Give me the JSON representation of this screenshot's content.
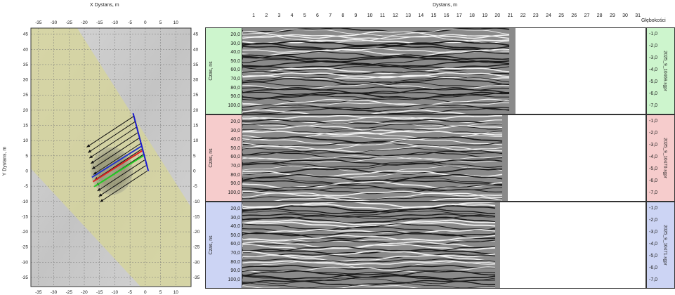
{
  "map": {
    "x_axis_title": "X Dystans, m",
    "y_axis_title": "Y Dystans, m",
    "x_ticks": [
      "-35",
      "-30",
      "-25",
      "-20",
      "-15",
      "-10",
      "-5",
      "0",
      "5",
      "10"
    ],
    "y_ticks": [
      "45",
      "40",
      "35",
      "30",
      "25",
      "20",
      "15",
      "10",
      "5",
      "0",
      "-5",
      "-10",
      "-15",
      "-20",
      "-25",
      "-30",
      "-35"
    ]
  },
  "radar": {
    "distance_title": "Dystans, m",
    "distance_ticks": [
      "1",
      "2",
      "3",
      "4",
      "5",
      "6",
      "7",
      "8",
      "9",
      "10",
      "11",
      "12",
      "13",
      "14",
      "15",
      "16",
      "17",
      "18",
      "19",
      "20",
      "21",
      "22",
      "23",
      "24",
      "25",
      "26",
      "27",
      "28",
      "29",
      "30",
      "31"
    ],
    "depth_title": "Głębokości",
    "time_axis_label": "Czas, ns",
    "time_ticks": [
      "20,0",
      "30,0",
      "40,0",
      "50,0",
      "60,0",
      "70,0",
      "80,0",
      "90,0",
      "100,0"
    ],
    "depth_ticks": [
      "-1,0",
      "-2,0",
      "-3,0",
      "-4,0",
      "-5,0",
      "-6,0",
      "-7,0"
    ],
    "profiles": [
      {
        "file": "2025_9_10469.sgpr",
        "color": "#cdf5cd",
        "length_m": 21.4
      },
      {
        "file": "2025_9_10470.sgpr",
        "color": "#f6cccc",
        "length_m": 20.8
      },
      {
        "file": "2025_9_10471.sgpr",
        "color": "#ccd4f4",
        "length_m": 20.2
      }
    ]
  }
}
